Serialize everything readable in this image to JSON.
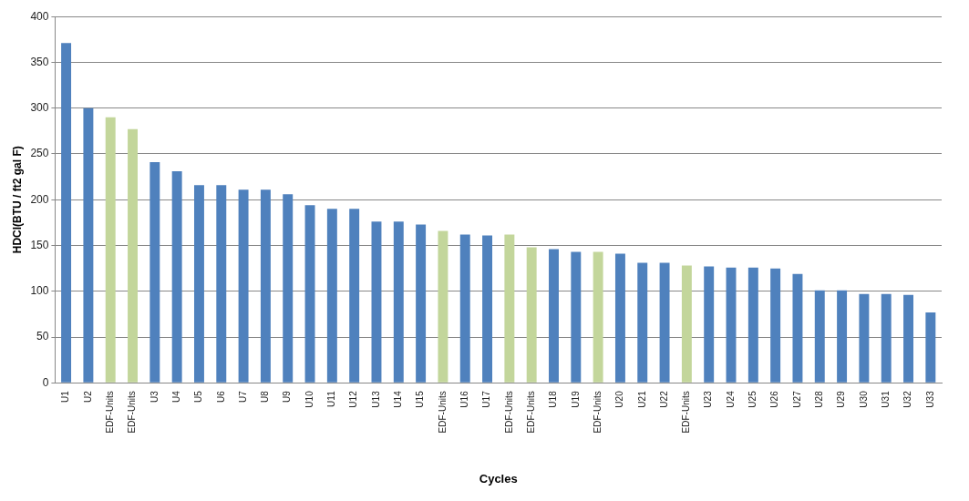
{
  "chart_data": {
    "type": "bar",
    "xlabel": "Cycles",
    "ylabel": "HDCI(BTU / ft2 gal F)",
    "categories": [
      "U1",
      "U2",
      "EDF-Units",
      "EDF-Units",
      "U3",
      "U4",
      "U5",
      "U6",
      "U7",
      "U8",
      "U9",
      "U10",
      "U11",
      "U12",
      "U13",
      "U14",
      "U15",
      "EDF-Units",
      "U16",
      "U17",
      "EDF-Units",
      "EDF-Units",
      "U18",
      "U19",
      "EDF-Units",
      "U20",
      "U21",
      "U22",
      "EDF-Units",
      "U23",
      "U24",
      "U25",
      "U26",
      "U27",
      "U28",
      "U29",
      "U30",
      "U31",
      "U32",
      "U33"
    ],
    "values": [
      371,
      300,
      290,
      277,
      241,
      231,
      216,
      216,
      211,
      211,
      206,
      194,
      190,
      190,
      176,
      176,
      173,
      166,
      162,
      161,
      162,
      148,
      146,
      143,
      143,
      141,
      131,
      131,
      128,
      127,
      126,
      126,
      125,
      119,
      101,
      101,
      97,
      97,
      96,
      77
    ],
    "colors": [
      "#4f81bd",
      "#4f81bd",
      "#c3d69b",
      "#c3d69b",
      "#4f81bd",
      "#4f81bd",
      "#4f81bd",
      "#4f81bd",
      "#4f81bd",
      "#4f81bd",
      "#4f81bd",
      "#4f81bd",
      "#4f81bd",
      "#4f81bd",
      "#4f81bd",
      "#4f81bd",
      "#4f81bd",
      "#c3d69b",
      "#4f81bd",
      "#4f81bd",
      "#c3d69b",
      "#c3d69b",
      "#4f81bd",
      "#4f81bd",
      "#c3d69b",
      "#4f81bd",
      "#4f81bd",
      "#4f81bd",
      "#c3d69b",
      "#4f81bd",
      "#4f81bd",
      "#4f81bd",
      "#4f81bd",
      "#4f81bd",
      "#4f81bd",
      "#4f81bd",
      "#4f81bd",
      "#4f81bd",
      "#4f81bd",
      "#4f81bd"
    ],
    "ylim": [
      0,
      400
    ],
    "yticks": [
      0,
      50,
      100,
      150,
      200,
      250,
      300,
      350,
      400
    ],
    "grid": "y",
    "legend": false
  }
}
